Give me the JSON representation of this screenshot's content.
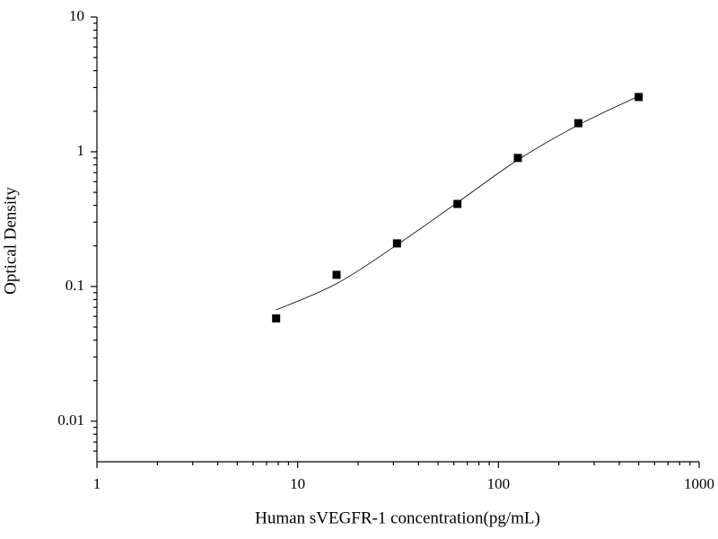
{
  "chart_data": {
    "type": "scatter",
    "x_label": "Human sVEGFR-1 concentration(pg/mL)",
    "y_label": "Optical Density",
    "x_log": true,
    "y_log": true,
    "xlim": [
      1,
      1000
    ],
    "ylim": [
      0.005,
      10
    ],
    "xticks": [
      1,
      10,
      100,
      1000
    ],
    "yticks": [
      0.01,
      0.1,
      1,
      10
    ],
    "xminorticks": [
      2,
      3,
      4,
      5,
      6,
      7,
      8,
      9,
      20,
      30,
      40,
      50,
      60,
      70,
      80,
      90,
      200,
      300,
      400,
      500,
      600,
      700,
      800,
      900
    ],
    "yminorticks": [
      0.006,
      0.007,
      0.008,
      0.009,
      0.02,
      0.03,
      0.04,
      0.05,
      0.06,
      0.07,
      0.08,
      0.09,
      0.2,
      0.3,
      0.4,
      0.5,
      0.6,
      0.7,
      0.8,
      0.9,
      2,
      3,
      4,
      5,
      6,
      7,
      8,
      9
    ],
    "series": [
      {
        "color": "#000000",
        "marker": "square",
        "x": [
          7.8125,
          15.625,
          31.25,
          62.5,
          125,
          250,
          500
        ],
        "values": [
          0.058,
          0.122,
          0.209,
          0.41,
          0.9,
          1.63,
          2.55
        ]
      },
      {
        "color": "#000000",
        "marker": "line",
        "x": [
          7.8125,
          15.625,
          31.25,
          62.5,
          125,
          250,
          500
        ],
        "values": [
          0.067,
          0.105,
          0.204,
          0.42,
          0.87,
          1.58,
          2.59
        ]
      }
    ]
  }
}
